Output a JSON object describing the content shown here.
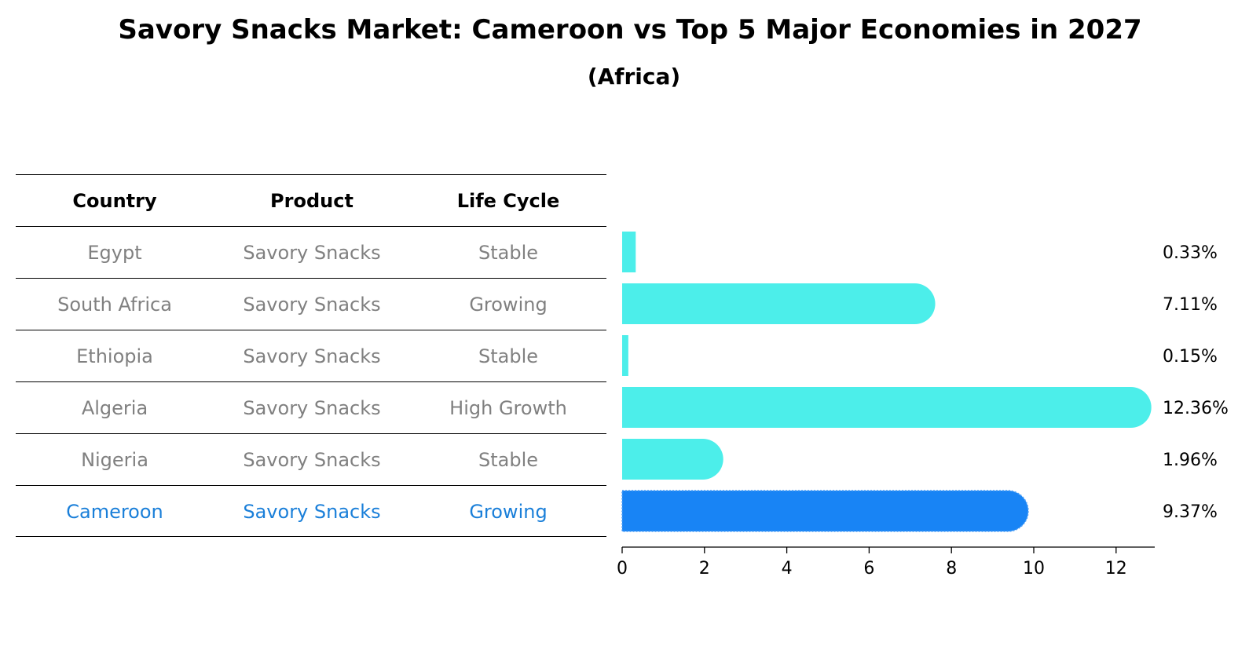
{
  "title": "Savory Snacks Market: Cameroon vs Top 5 Major Economies in 2027",
  "subtitle": "(Africa)",
  "table": {
    "headers": [
      "Country",
      "Product",
      "Life Cycle"
    ],
    "rows": [
      [
        "Egypt",
        "Savory Snacks",
        "Stable"
      ],
      [
        "South Africa",
        "Savory Snacks",
        "Growing"
      ],
      [
        "Ethiopia",
        "Savory Snacks",
        "Stable"
      ],
      [
        "Algeria",
        "Savory Snacks",
        "High Growth"
      ],
      [
        "Nigeria",
        "Savory Snacks",
        "Stable"
      ],
      [
        "Cameroon",
        "Savory Snacks",
        "Growing"
      ]
    ]
  },
  "chart_data": {
    "type": "bar",
    "orientation": "horizontal",
    "categories": [
      "Egypt",
      "South Africa",
      "Ethiopia",
      "Algeria",
      "Nigeria",
      "Cameroon"
    ],
    "values": [
      0.33,
      7.11,
      0.15,
      12.36,
      1.96,
      9.37
    ],
    "value_labels": [
      "0.33%",
      "7.11%",
      "0.15%",
      "12.36%",
      "1.96%",
      "9.37%"
    ],
    "xlim": [
      0,
      13
    ],
    "xticks": [
      0,
      2,
      4,
      6,
      8,
      10,
      12
    ],
    "highlight": "Cameroon",
    "colors": {
      "default": "#4ceeea",
      "highlight": "#1884f5"
    },
    "grid": false
  },
  "colors": {
    "muted_text": "#808080",
    "highlight_text": "#1a7fd9"
  }
}
